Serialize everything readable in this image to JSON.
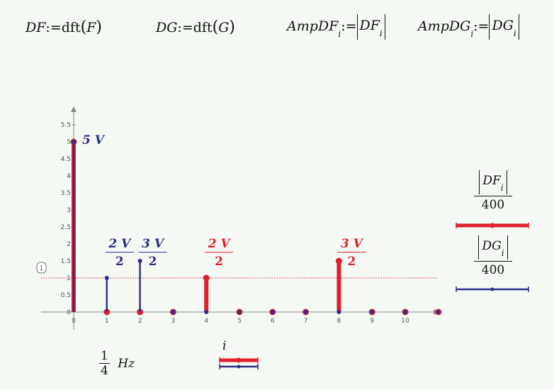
{
  "equations": {
    "eq1": {
      "lhs": "DF",
      "assign": ":=",
      "fn": "dft",
      "arg": "F"
    },
    "eq2": {
      "lhs": "DG",
      "assign": ":=",
      "fn": "dft",
      "arg": "G"
    },
    "eq3": {
      "lhs": "AmpDF",
      "sub": "i",
      "assign": ":=",
      "abs": "DF",
      "abs_sub": "i"
    },
    "eq4": {
      "lhs": "AmpDG",
      "sub": "i",
      "assign": ":=",
      "abs": "DG",
      "abs_sub": "i"
    }
  },
  "marker_label": "1",
  "xaxis": {
    "var": "i",
    "unit_num": "1",
    "unit_den": "4",
    "unit": "Hz"
  },
  "legend": [
    {
      "num": "DF",
      "sub": "i",
      "den": "400",
      "color": "#e0202c"
    },
    {
      "num": "DG",
      "sub": "i",
      "den": "400",
      "color": "#2a2f8a"
    }
  ],
  "chart_data": {
    "type": "stem",
    "x": [
      0,
      1,
      2,
      3,
      4,
      5,
      6,
      7,
      8,
      9,
      10,
      11
    ],
    "xlim": [
      -1,
      11
    ],
    "ylim": [
      -0.1,
      6
    ],
    "xticks": [
      "0",
      "1",
      "2",
      "3",
      "4",
      "5",
      "6",
      "7",
      "8",
      "9",
      "10"
    ],
    "yticks": [
      "0",
      "0.5",
      "1",
      "1.5",
      "2",
      "2.5",
      "3",
      "3.5",
      "4",
      "4.5",
      "5",
      "5.5"
    ],
    "series": [
      {
        "values": [
          5,
          0,
          0,
          0,
          1,
          0,
          0,
          0,
          1.5,
          0,
          0,
          0
        ],
        "color": "#e0202c"
      },
      {
        "values": [
          5,
          1,
          1.5,
          0,
          0,
          0,
          0,
          0,
          0,
          0,
          0,
          0
        ],
        "color": "#2a2f8a"
      }
    ],
    "reference_line": {
      "y": 1,
      "color": "#e0202c"
    },
    "annotations": [
      {
        "x": 0,
        "y": 5,
        "num": "5 V",
        "den": "",
        "color": "#2a2f8a"
      },
      {
        "x": 1,
        "y": 1.9,
        "num": "2 V",
        "den": "2",
        "color": "#2a2f8a"
      },
      {
        "x": 2,
        "y": 1.9,
        "num": "3 V",
        "den": "2",
        "color": "#2a2f8a"
      },
      {
        "x": 4,
        "y": 1.9,
        "num": "2 V",
        "den": "2",
        "color": "#e0202c"
      },
      {
        "x": 8,
        "y": 1.9,
        "num": "3 V",
        "den": "2",
        "color": "#e0202c"
      }
    ]
  }
}
